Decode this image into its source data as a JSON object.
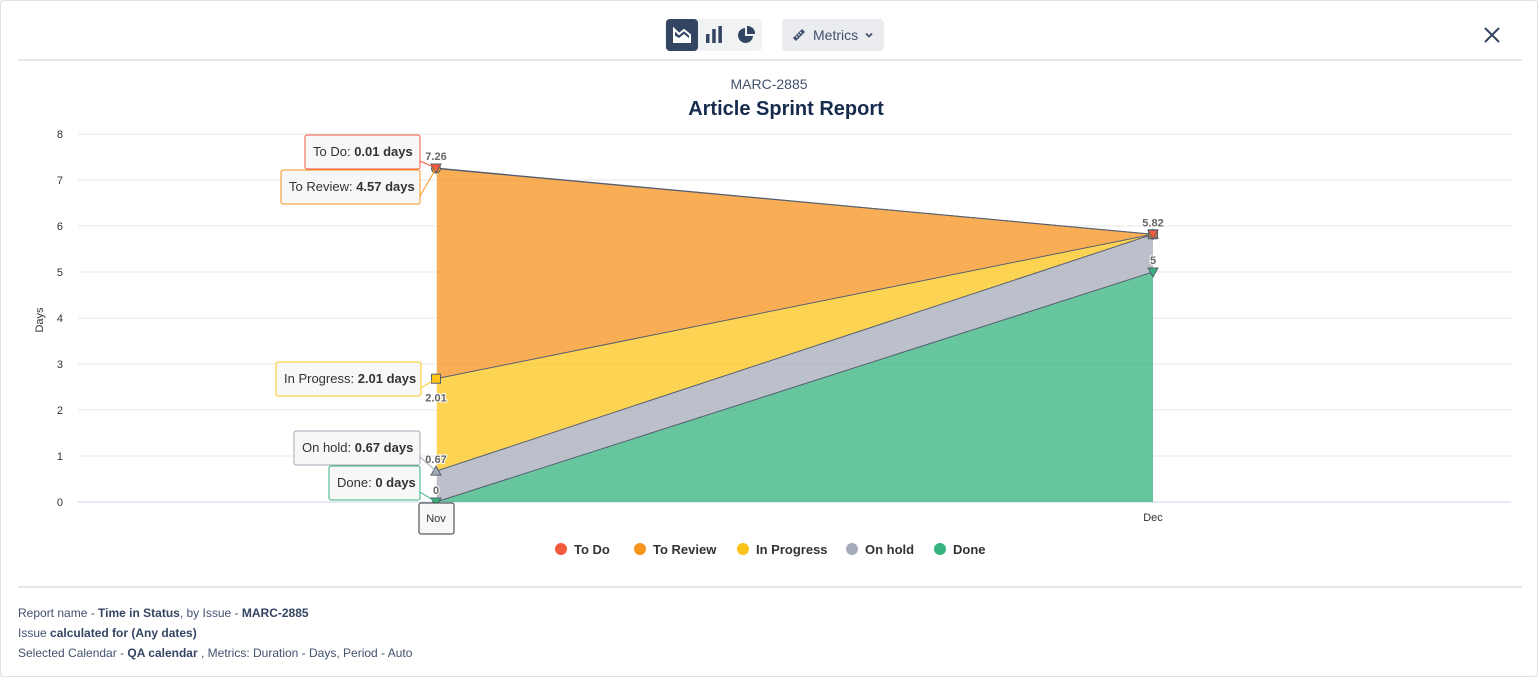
{
  "toolbar": {
    "views": [
      "area-chart-icon",
      "bar-chart-icon",
      "pie-chart-icon"
    ],
    "active_view": "area",
    "metrics_label": "Metrics"
  },
  "colors": {
    "todo": "#f45b3c",
    "to_review": "#f7931e",
    "in_progress": "#fcc419",
    "on_hold": "#a5abb8",
    "done": "#36b37e"
  },
  "chart_data": {
    "type": "area",
    "stacked": true,
    "subtitle": "MARC-2885",
    "title": "Article Sprint Report",
    "xlabel": "",
    "ylabel": "Days",
    "categories": [
      "Nov",
      "Dec"
    ],
    "ylim": [
      0,
      8
    ],
    "yticks": [
      "0",
      "1",
      "2",
      "3",
      "4",
      "5",
      "6",
      "7",
      "8"
    ],
    "grid": true,
    "legend_position": "bottom",
    "series": [
      {
        "name": "To Do",
        "key": "todo",
        "values": [
          0.01,
          0
        ],
        "marker": "triangle-down"
      },
      {
        "name": "To Review",
        "key": "to_review",
        "values": [
          4.57,
          0
        ],
        "marker": "circle"
      },
      {
        "name": "In Progress",
        "key": "in_progress",
        "values": [
          2.01,
          0
        ],
        "marker": "square"
      },
      {
        "name": "On hold",
        "key": "on_hold",
        "values": [
          0.67,
          0.82
        ],
        "marker": "triangle"
      },
      {
        "name": "Done",
        "key": "done",
        "values": [
          0,
          5
        ],
        "marker": "triangle-down"
      }
    ],
    "point_labels": [
      {
        "category": "Nov",
        "value": 7.26,
        "text": "7.26"
      },
      {
        "category": "Nov",
        "value": 2.01,
        "text": "2.01"
      },
      {
        "category": "Nov",
        "value": 0.67,
        "text": "0.67"
      },
      {
        "category": "Nov",
        "value": 0,
        "text": "0"
      },
      {
        "category": "Dec",
        "value": 5.82,
        "text": "5.82"
      },
      {
        "category": "Dec",
        "value": 5,
        "text": "5"
      }
    ],
    "tooltips": [
      {
        "series": "To Do",
        "label": "To Do: ",
        "value": "0.01 days"
      },
      {
        "series": "To Review",
        "label": "To Review: ",
        "value": "4.57 days"
      },
      {
        "series": "In Progress",
        "label": "In Progress: ",
        "value": "2.01 days"
      },
      {
        "series": "On hold",
        "label": "On hold: ",
        "value": "0.67 days"
      },
      {
        "series": "Done",
        "label": "Done: ",
        "value": "0 days"
      }
    ],
    "hover_category": "Nov"
  },
  "footer": {
    "line1_prefix": "Report name - ",
    "report_name": "Time in Status",
    "line1_mid": ", by Issue - ",
    "issue_key": "MARC-2885",
    "line2_prefix": "Issue ",
    "line2_bold": "calculated for (Any dates)",
    "line3_prefix": "Selected Calendar - ",
    "calendar": "QA calendar",
    "line3_rest": " , Metrics: Duration - Days, Period - Auto"
  }
}
